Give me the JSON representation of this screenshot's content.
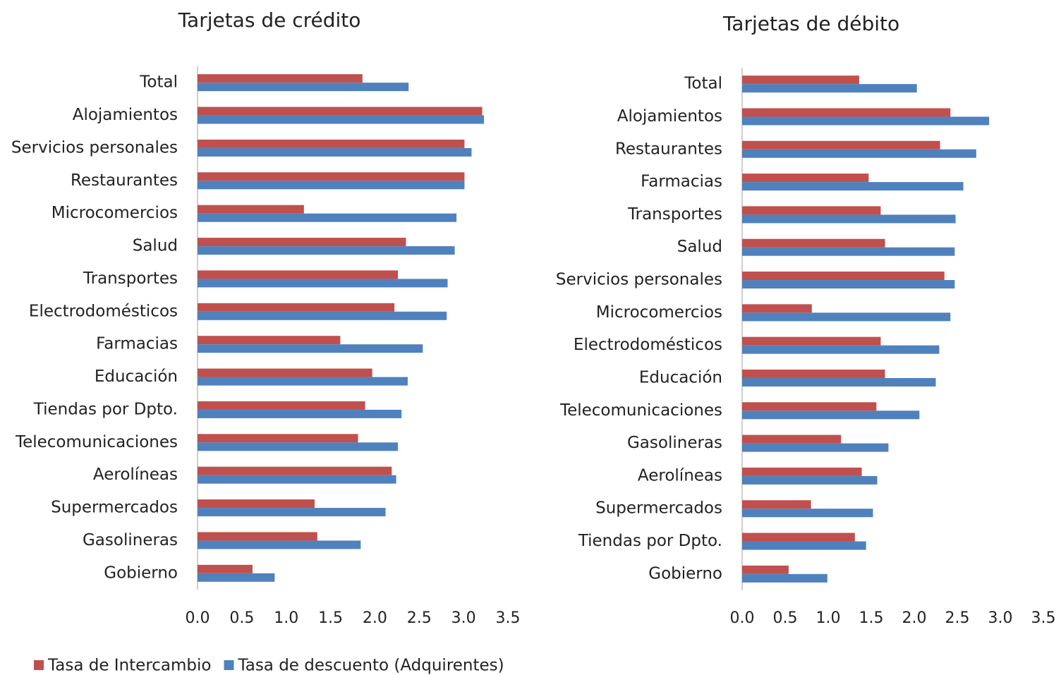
{
  "chart_data": [
    {
      "type": "barh",
      "title": "Tarjetas de crédito",
      "categories": [
        "Total",
        "Alojamientos",
        "Servicios personales",
        "Restaurantes",
        "Microcomercios",
        "Salud",
        "Transportes",
        "Electrodomésticos",
        "Farmacias",
        "Educación",
        "Tiendas por Dpto.",
        "Telecomunicaciones",
        "Aerolíneas",
        "Supermercados",
        "Gasolineras",
        "Gobierno"
      ],
      "series": [
        {
          "name": "Tasa de Intercambio",
          "color": "#c0504d",
          "values": [
            1.86,
            3.21,
            3.01,
            3.01,
            1.2,
            2.35,
            2.26,
            2.22,
            1.61,
            1.97,
            1.89,
            1.81,
            2.19,
            1.32,
            1.35,
            0.62
          ]
        },
        {
          "name": "Tasa de descuento (Adquirentes)",
          "color": "#4f81bd",
          "values": [
            2.38,
            3.23,
            3.09,
            3.01,
            2.92,
            2.9,
            2.82,
            2.81,
            2.54,
            2.37,
            2.3,
            2.26,
            2.24,
            2.12,
            1.84,
            0.87
          ]
        }
      ],
      "xlim": [
        0,
        3.5
      ],
      "xticks": [
        {
          "value": 0,
          "label": "0.0"
        },
        0.5,
        {
          "value": 1,
          "label": "1.0"
        },
        1.5,
        {
          "value": 2,
          "label": "2.0"
        },
        2.5,
        {
          "value": 3,
          "label": "3.0"
        },
        3.5
      ]
    },
    {
      "type": "barh",
      "title": "Tarjetas de débito",
      "categories": [
        "Total",
        "Alojamientos",
        "Restaurantes",
        "Farmacias",
        "Transportes",
        "Salud",
        "Servicios personales",
        "Microcomercios",
        "Electrodomésticos",
        "Educación",
        "Telecomunicaciones",
        "Gasolineras",
        "Aerolíneas",
        "Supermercados",
        "Tiendas por Dpto.",
        "Gobierno"
      ],
      "series": [
        {
          "color": "#c0504d",
          "values": [
            1.36,
            2.42,
            2.3,
            1.47,
            1.61,
            1.66,
            2.35,
            0.81,
            1.61,
            1.66,
            1.56,
            1.15,
            1.39,
            0.8,
            1.31,
            0.54
          ]
        },
        {
          "color": "#4f81bd",
          "values": [
            2.03,
            2.87,
            2.72,
            2.57,
            2.48,
            2.47,
            2.47,
            2.42,
            2.29,
            2.25,
            2.06,
            1.7,
            1.57,
            1.52,
            1.44,
            0.99
          ]
        }
      ],
      "xlim": [
        0,
        3.5
      ],
      "xticks": [
        {
          "value": 0,
          "label": "0.0"
        },
        0.5,
        {
          "value": 1,
          "label": "1.0"
        },
        1.5,
        {
          "value": 2,
          "label": "2.0"
        },
        2.5,
        {
          "value": 3,
          "label": "3.0"
        },
        3.5
      ]
    }
  ]
}
